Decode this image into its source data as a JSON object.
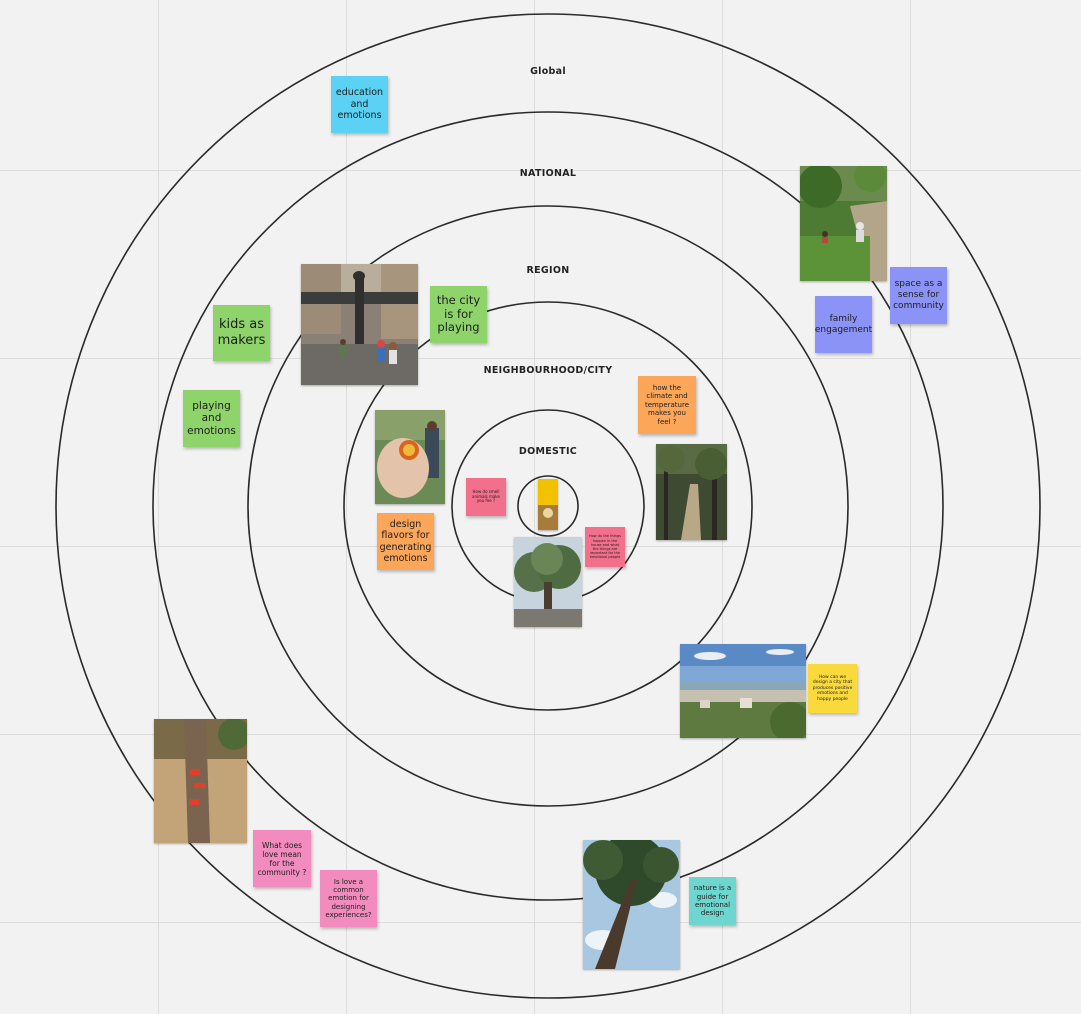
{
  "rings": [
    {
      "label": "Global"
    },
    {
      "label": "NATIONAL"
    },
    {
      "label": "REGION"
    },
    {
      "label": "NEIGHBOURHOOD/CITY"
    },
    {
      "label": "DOMESTIC"
    }
  ],
  "colors": {
    "blue": "#5bd1f3",
    "green": "#8fd46b",
    "purple": "#8c93f7",
    "orange": "#fca65a",
    "pink": "#f28cbe",
    "red": "#f2708c",
    "yellow": "#fad93c",
    "teal": "#6fd6cf"
  },
  "notes": {
    "education_emotions": "education and emotions",
    "kids_makers": "kids as makers",
    "playing_emotions": "playing and emotions",
    "city_playing": "the city is for playing",
    "family_engagement": "family engagement",
    "space_community": "space as a sense for community",
    "climate_temperature": "how the climate and temperature makes you feel ?",
    "design_flavors": "design flavors for generating emotions",
    "small_red_1": "How do smell animals make you fee ?",
    "small_red_2": "How do the things happen in the house and what the things are important for the emotional people",
    "yellow_city": "How can we design a city that produces positive emotions and happy people",
    "love_community": "What does love mean for the community ?",
    "love_common": "Is love a common emotion for designing experiences?",
    "nature_guide": "nature is a guide for emotional design"
  },
  "photos": [
    {
      "name": "fountain-photo",
      "icon": "fountain-square-photo"
    },
    {
      "name": "park-path-photo",
      "icon": "park-people-photo"
    },
    {
      "name": "hand-fruit-photo",
      "icon": "hand-holding-fruit-photo"
    },
    {
      "name": "forest-trail-photo",
      "icon": "forest-path-photo"
    },
    {
      "name": "olive-tree-photo",
      "icon": "tree-photo"
    },
    {
      "name": "city-view-photo",
      "icon": "city-landscape-photo"
    },
    {
      "name": "tree-trunk-photo",
      "icon": "tree-trunk-photo"
    },
    {
      "name": "pine-tree-photo",
      "icon": "pine-tree-photo"
    },
    {
      "name": "center-photo",
      "icon": "small-yellow-photo"
    }
  ]
}
